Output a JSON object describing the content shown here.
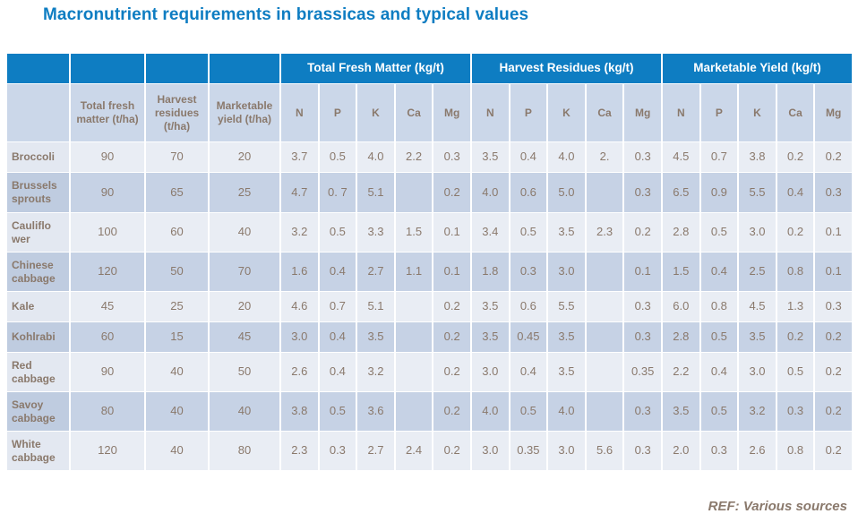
{
  "slide": {
    "title": "Macronutrient requirements in brassicas and typical values",
    "footer_ref": "REF: Various sources"
  },
  "colors": {
    "title_blue": "#0e7dc2",
    "group_header_bg": "#0e7dc2",
    "group_header_text": "#ffffff",
    "sub_header_bg": "#cbd7e9",
    "row_light_bg": "#e9edf4",
    "row_dark_bg": "#c6d2e5",
    "table_text": "#8a796c"
  },
  "table": {
    "group_headers": [
      {
        "label": "Total Fresh Matter (kg/t)",
        "span": 5
      },
      {
        "label": "Harvest Residues (kg/t)",
        "span": 5
      },
      {
        "label": "Marketable Yield (kg/t)",
        "span": 5
      }
    ],
    "lead_headers": [
      "",
      "Total fresh matter (t/ha)",
      "Harvest residues (t/ha)",
      "Marketable yield (t/ha)"
    ],
    "nutrient_headers": [
      "N",
      "P",
      "K",
      "Ca",
      "Mg"
    ],
    "rows": [
      {
        "crop": "Broccoli",
        "values": [
          "90",
          "70",
          "20",
          "3.7",
          "0.5",
          "4.0",
          "2.2",
          "0.3",
          "3.5",
          "0.4",
          "4.0",
          "2.",
          "0.3",
          "4.5",
          "0.7",
          "3.8",
          "0.2",
          "0.2"
        ]
      },
      {
        "crop": "Brussels sprouts",
        "values": [
          "90",
          "65",
          "25",
          "4.7",
          "0. 7",
          "5.1",
          "",
          "0.2",
          "4.0",
          "0.6",
          "5.0",
          "",
          "0.3",
          "6.5",
          "0.9",
          "5.5",
          "0.4",
          "0.3"
        ]
      },
      {
        "crop": "Cauliflo\nwer",
        "values": [
          "100",
          "60",
          "40",
          "3.2",
          "0.5",
          "3.3",
          "1.5",
          "0.1",
          "3.4",
          "0.5",
          "3.5",
          "2.3",
          "0.2",
          "2.8",
          "0.5",
          "3.0",
          "0.2",
          "0.1"
        ]
      },
      {
        "crop": "Chinese cabbage",
        "values": [
          "120",
          "50",
          "70",
          "1.6",
          "0.4",
          "2.7",
          "1.1",
          "0.1",
          "1.8",
          "0.3",
          "3.0",
          "",
          "0.1",
          "1.5",
          "0.4",
          "2.5",
          "0.8",
          "0.1"
        ]
      },
      {
        "crop": "Kale",
        "values": [
          "45",
          "25",
          "20",
          "4.6",
          "0.7",
          "5.1",
          "",
          "0.2",
          "3.5",
          "0.6",
          "5.5",
          "",
          "0.3",
          "6.0",
          "0.8",
          "4.5",
          "1.3",
          "0.3"
        ]
      },
      {
        "crop": "Kohlrabi",
        "values": [
          "60",
          "15",
          "45",
          "3.0",
          "0.4",
          "3.5",
          "",
          "0.2",
          "3.5",
          "0.45",
          "3.5",
          "",
          "0.3",
          "2.8",
          "0.5",
          "3.5",
          "0.2",
          "0.2"
        ]
      },
      {
        "crop": "Red cabbage",
        "values": [
          "90",
          "40",
          "50",
          "2.6",
          "0.4",
          "3.2",
          "",
          "0.2",
          "3.0",
          "0.4",
          "3.5",
          "",
          "0.35",
          "2.2",
          "0.4",
          "3.0",
          "0.5",
          "0.2"
        ]
      },
      {
        "crop": "Savoy cabbage",
        "values": [
          "80",
          "40",
          "40",
          "3.8",
          "0.5",
          "3.6",
          "",
          "0.2",
          "4.0",
          "0.5",
          "4.0",
          "",
          "0.3",
          "3.5",
          "0.5",
          "3.2",
          "0.3",
          "0.2"
        ]
      },
      {
        "crop": "White cabbage",
        "values": [
          "120",
          "40",
          "80",
          "2.3",
          "0.3",
          "2.7",
          "2.4",
          "0.2",
          "3.0",
          "0.35",
          "3.0",
          "5.6",
          "0.3",
          "2.0",
          "0.3",
          "2.6",
          "0.8",
          "0.2"
        ]
      }
    ]
  }
}
